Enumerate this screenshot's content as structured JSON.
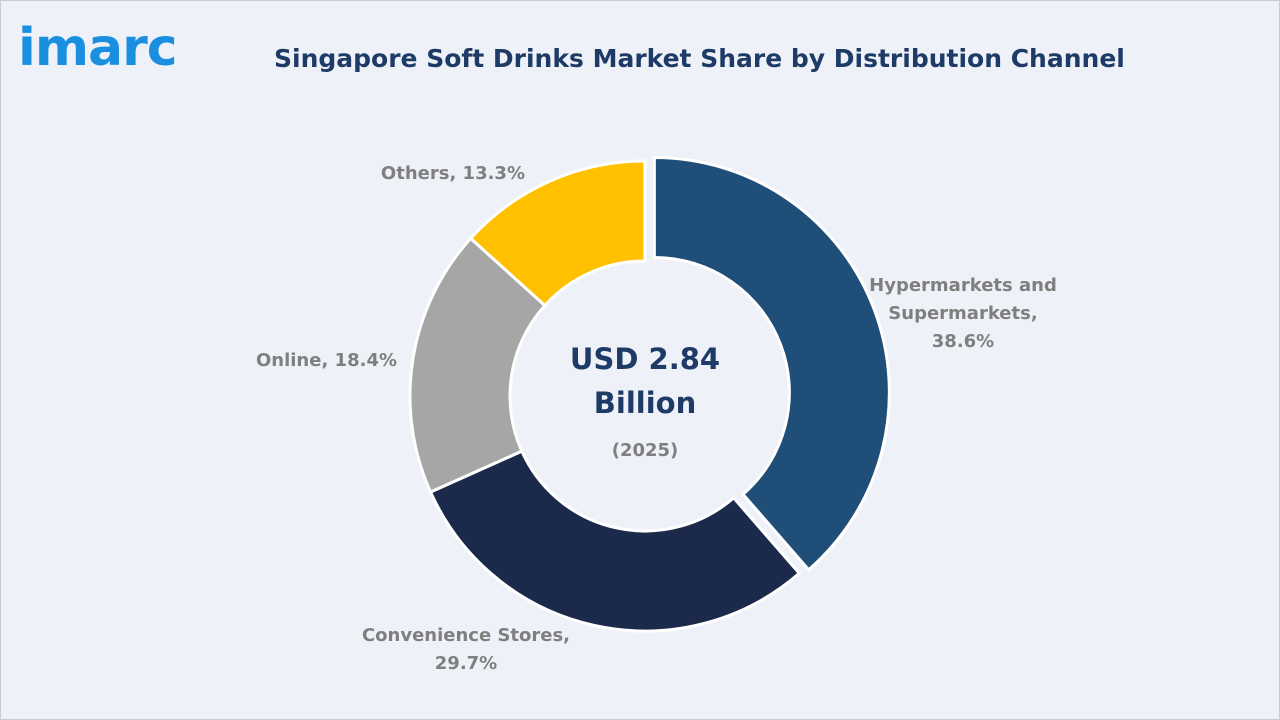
{
  "brand": {
    "logo_text": "imarc",
    "logo_color": "#1a8fe0"
  },
  "header": {
    "title": "Singapore Soft Drinks Market Share by Distribution Channel"
  },
  "chart_data": {
    "type": "pie",
    "variant": "donut",
    "title": "Singapore Soft Drinks Market Share by Distribution Channel",
    "center_text": {
      "line1": "USD 2.84",
      "line2": "Billion",
      "year": "(2025)"
    },
    "categories": [
      "Hypermarkets and Supermarkets",
      "Convenience Stores",
      "Online",
      "Others"
    ],
    "values": [
      38.6,
      29.7,
      18.4,
      13.3
    ],
    "unit": "%",
    "slices": [
      {
        "label_lines": [
          "Hypermarkets and",
          "Supermarkets,",
          "38.6%"
        ],
        "value": 38.6,
        "color": "#1f4e79",
        "exploded": true
      },
      {
        "label_lines": [
          "Convenience Stores,",
          "29.7%"
        ],
        "value": 29.7,
        "color": "#1b2a4a",
        "exploded": false
      },
      {
        "label_lines": [
          "Online, 18.4%"
        ],
        "value": 18.4,
        "color": "#a6a6a6",
        "exploded": false
      },
      {
        "label_lines": [
          "Others, 13.3%"
        ],
        "value": 13.3,
        "color": "#ffc000",
        "exploded": false
      }
    ],
    "legend": "none"
  }
}
